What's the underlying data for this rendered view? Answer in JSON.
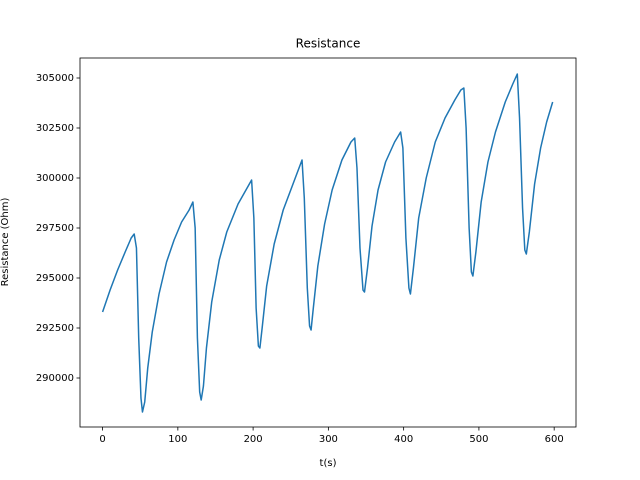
{
  "chart_data": {
    "type": "line",
    "title": "Resistance",
    "xlabel": "t(s)",
    "ylabel": "Resistance (Ohm)",
    "x": [
      0,
      10,
      20,
      30,
      38,
      42,
      45,
      48,
      51,
      53,
      56,
      60,
      66,
      75,
      85,
      95,
      105,
      115,
      120,
      123,
      126,
      129,
      131,
      134,
      138,
      145,
      155,
      165,
      180,
      192,
      198,
      201,
      204,
      207,
      209,
      212,
      218,
      228,
      240,
      252,
      262,
      265,
      268,
      272,
      275,
      277,
      280,
      286,
      295,
      305,
      318,
      330,
      335,
      338,
      342,
      346,
      348,
      352,
      358,
      366,
      376,
      388,
      396,
      399,
      403,
      407,
      409,
      413,
      420,
      430,
      442,
      455,
      468,
      476,
      480,
      483,
      487,
      490,
      492,
      496,
      503,
      512,
      522,
      535,
      545,
      551,
      554,
      558,
      561,
      563,
      567,
      574,
      582,
      590,
      598
    ],
    "series": [
      {
        "name": "Resistance",
        "color": "#1f77b4",
        "values": [
          293300,
          294400,
          295400,
          296300,
          297000,
          297200,
          296500,
          292000,
          289000,
          288300,
          288800,
          290500,
          292300,
          294200,
          295800,
          296900,
          297800,
          298400,
          298800,
          297500,
          292000,
          289300,
          288900,
          289600,
          291500,
          293800,
          295900,
          297300,
          298700,
          299500,
          299900,
          298000,
          293500,
          291600,
          291500,
          292500,
          294600,
          296700,
          298400,
          299600,
          300600,
          300900,
          299000,
          294500,
          292600,
          292400,
          293500,
          295600,
          297700,
          299400,
          300900,
          301800,
          302000,
          300500,
          296500,
          294400,
          294300,
          295500,
          297600,
          299400,
          300800,
          301800,
          302300,
          301500,
          297000,
          294500,
          294200,
          295500,
          298000,
          300000,
          301800,
          303000,
          303900,
          304400,
          304500,
          302500,
          297500,
          295300,
          295100,
          296300,
          298800,
          300800,
          302300,
          303800,
          304700,
          305200,
          303000,
          298500,
          296400,
          296200,
          297300,
          299700,
          301500,
          302800,
          303800
        ]
      }
    ],
    "xlim": [
      -30,
      629
    ],
    "ylim": [
      287550,
      306000
    ],
    "xticks": [
      0,
      100,
      200,
      300,
      400,
      500,
      600
    ],
    "yticks": [
      290000,
      292500,
      295000,
      297500,
      300000,
      302500,
      305000
    ]
  }
}
